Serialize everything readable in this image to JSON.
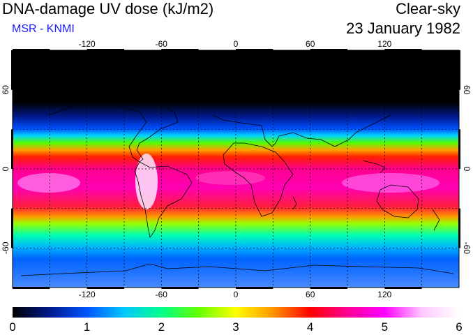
{
  "header": {
    "title": "DNA-damage UV dose (kJ/m2)",
    "subtitle": "MSR - KNMI",
    "condition": "Clear-sky",
    "date": "23 January 1982"
  },
  "map": {
    "projection": "equirectangular",
    "lon_range": [
      -180,
      180
    ],
    "lat_range": [
      -90,
      90
    ],
    "lon_ticks": [
      "-120",
      "-60",
      "0",
      "60",
      "120"
    ],
    "lat_ticks": [
      "60",
      "0",
      "-60"
    ],
    "gridlines": "dashed every 30 degrees"
  },
  "colorbar": {
    "labels": [
      "0",
      "1",
      "2",
      "3",
      "4",
      "5",
      "6"
    ],
    "colors": [
      "#000000",
      "#001a8c",
      "#0055ff",
      "#00c8ff",
      "#00ff8c",
      "#64ff00",
      "#ffff00",
      "#ff9600",
      "#ff0000",
      "#ff0096",
      "#ff00ff",
      "#ffc8ff",
      "#ffffff"
    ]
  }
}
